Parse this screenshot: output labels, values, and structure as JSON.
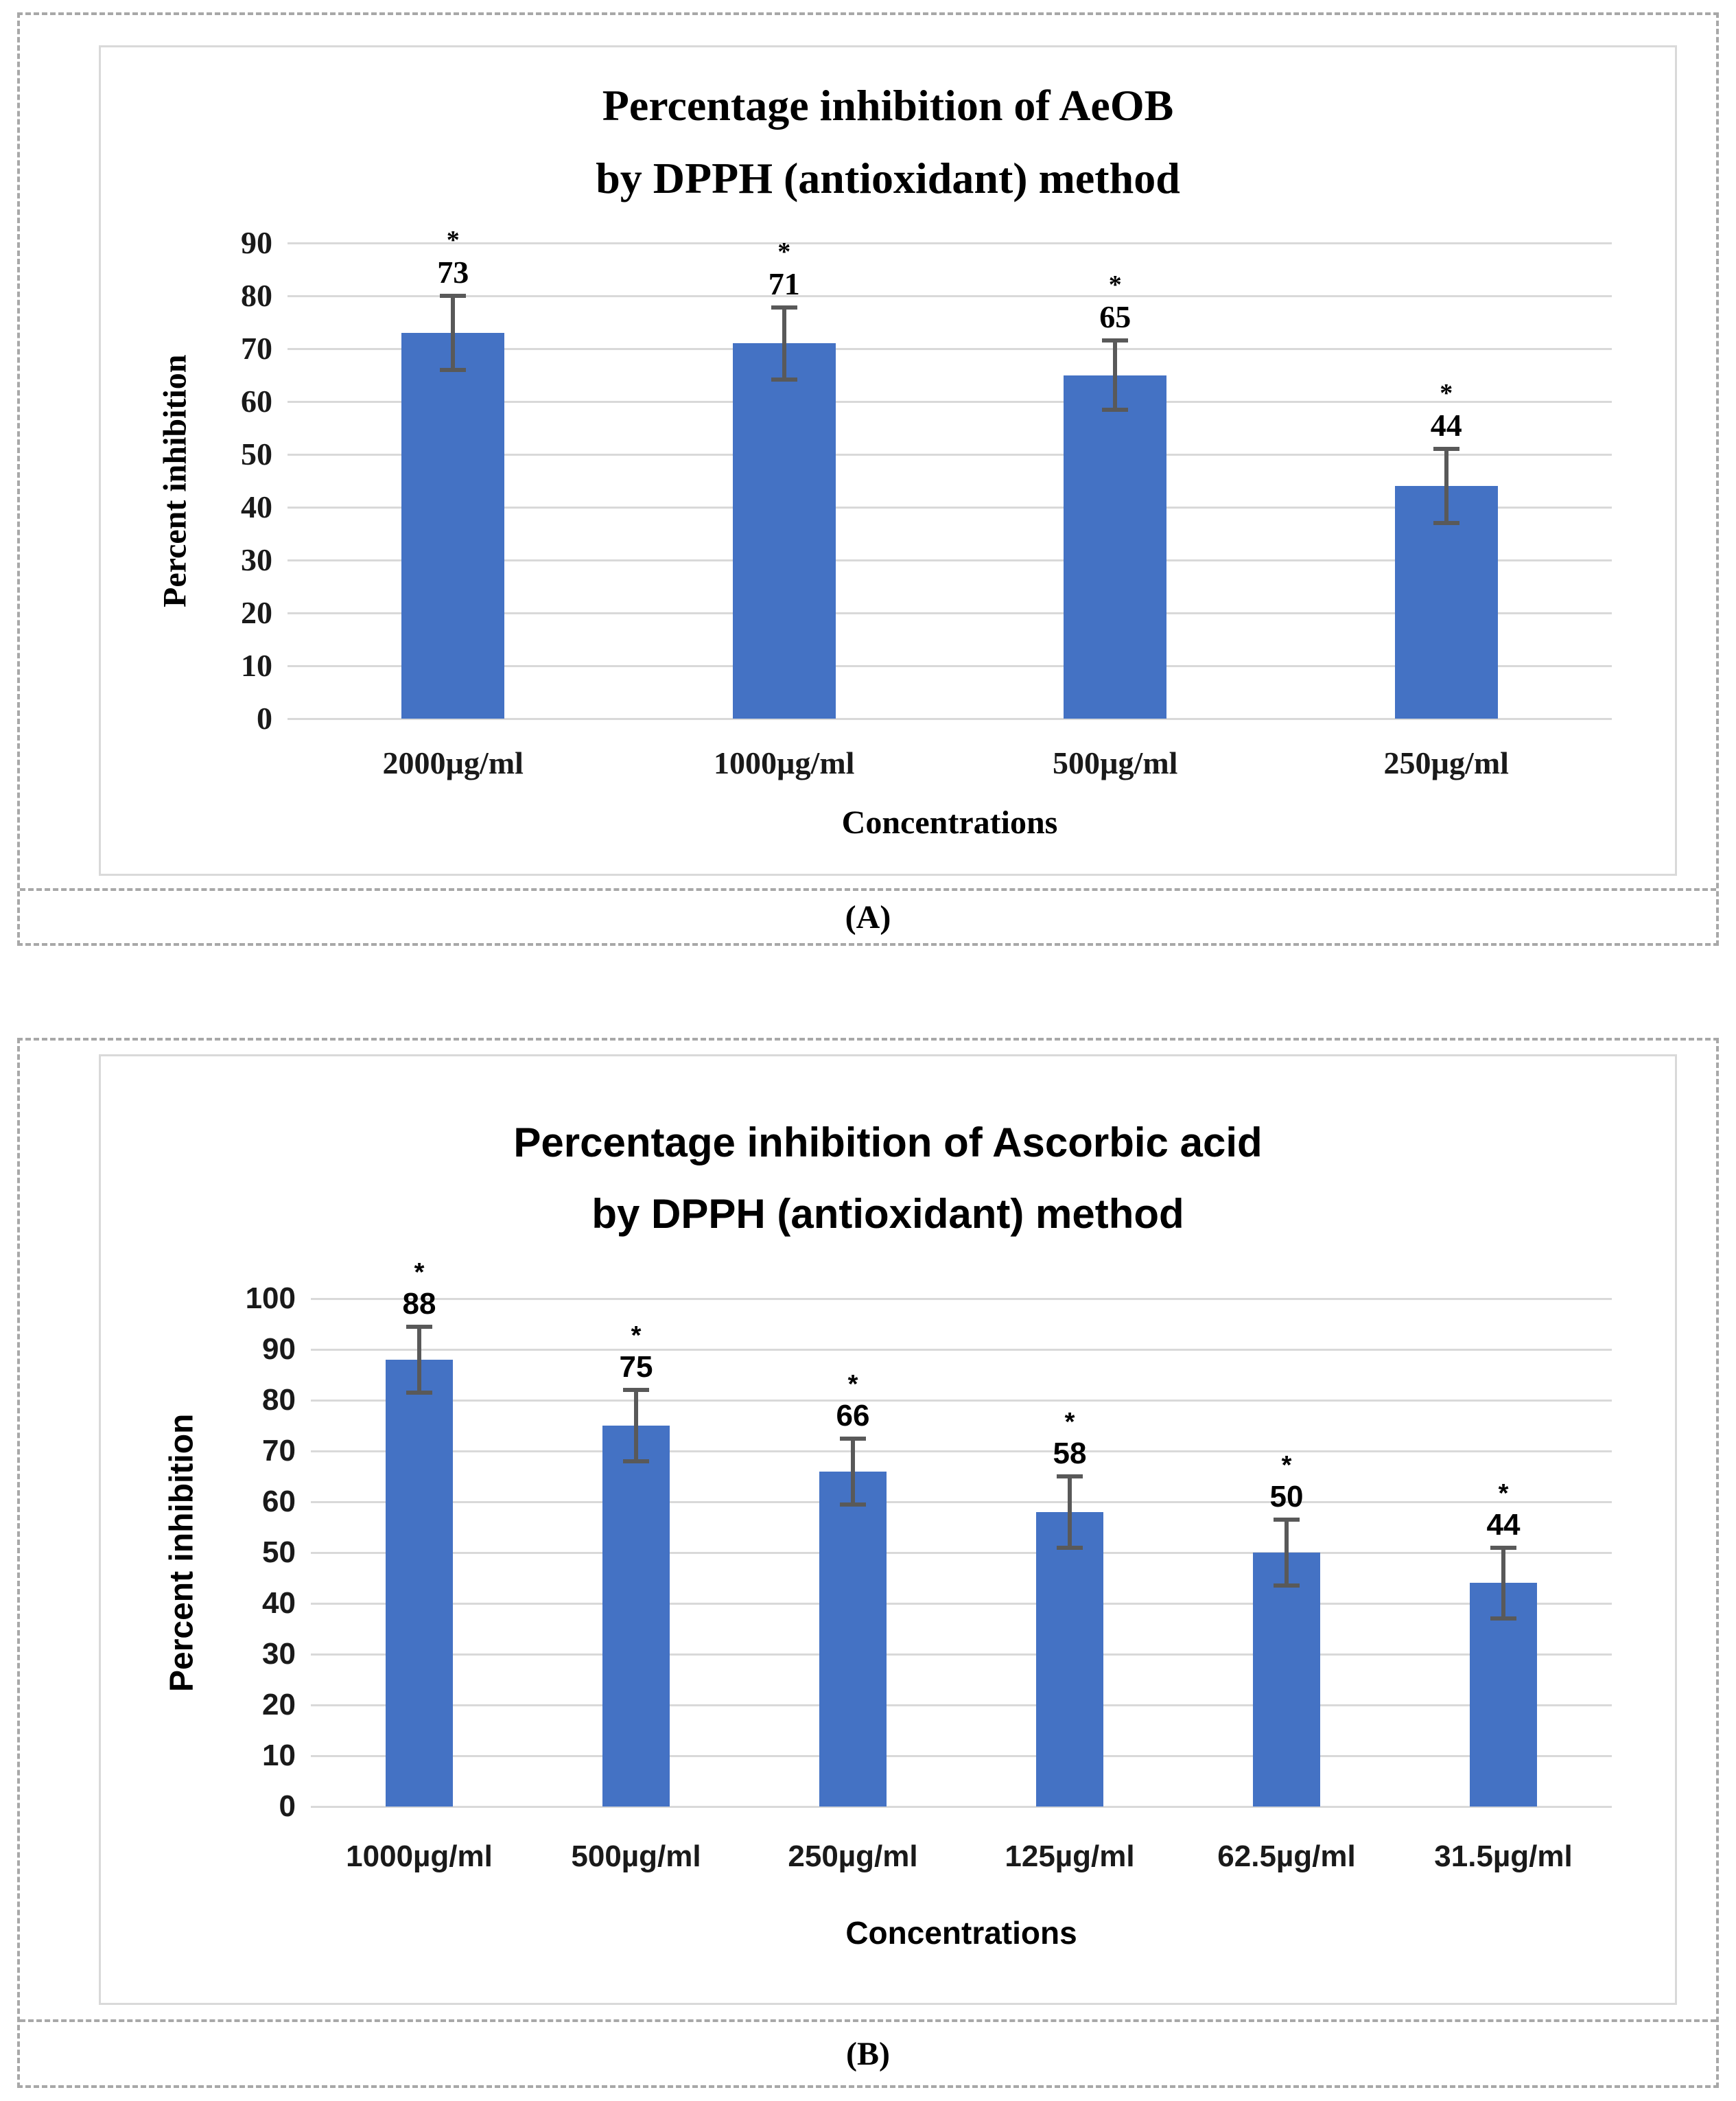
{
  "chart_data": [
    {
      "type": "bar",
      "title": "Percentage inhibition of AeOB by DPPH (antioxidant) method",
      "title_lines": [
        "Percentage inhibition of AeOB",
        "by DPPH (antioxidant) method"
      ],
      "categories": [
        "2000µg/ml",
        "1000µg/ml",
        "500µg/ml",
        "250µg/ml"
      ],
      "values": [
        73,
        71,
        65,
        44
      ],
      "data_labels": [
        "73",
        "71",
        "65",
        "44"
      ],
      "significance_marks": [
        "*",
        "*",
        "*",
        "*"
      ],
      "error_bars": [
        7,
        6.8,
        6.5,
        7
      ],
      "xlabel": "Concentrations",
      "ylabel": "Percent inhibition",
      "ylim": [
        0,
        90
      ],
      "ytick_step": 10,
      "grid": true,
      "legend": "none",
      "bar_color": "#4472C4",
      "error_color": "#595959",
      "gridline_color": "#d9d9d9",
      "caption": "(A)"
    },
    {
      "type": "bar",
      "title": "Percentage inhibition of Ascorbic acid by DPPH (antioxidant) method",
      "title_lines": [
        "Percentage inhibition of Ascorbic acid",
        "by DPPH (antioxidant) method"
      ],
      "categories": [
        "1000µg/ml",
        "500µg/ml",
        "250µg/ml",
        "125µg/ml",
        "62.5µg/ml",
        "31.5µg/ml"
      ],
      "values": [
        88,
        75,
        66,
        58,
        50,
        44
      ],
      "data_labels": [
        "88",
        "75",
        "66",
        "58",
        "50",
        "44"
      ],
      "significance_marks": [
        "*",
        "*",
        "*",
        "*",
        "*",
        "*"
      ],
      "error_bars": [
        6.5,
        7,
        6.5,
        7,
        6.5,
        7
      ],
      "xlabel": "Concentrations",
      "ylabel": "Percent inhibition",
      "ylim": [
        0,
        100
      ],
      "ytick_step": 10,
      "grid": true,
      "legend": "none",
      "bar_color": "#4472C4",
      "error_color": "#595959",
      "gridline_color": "#d9d9d9",
      "caption": "(B)"
    }
  ]
}
